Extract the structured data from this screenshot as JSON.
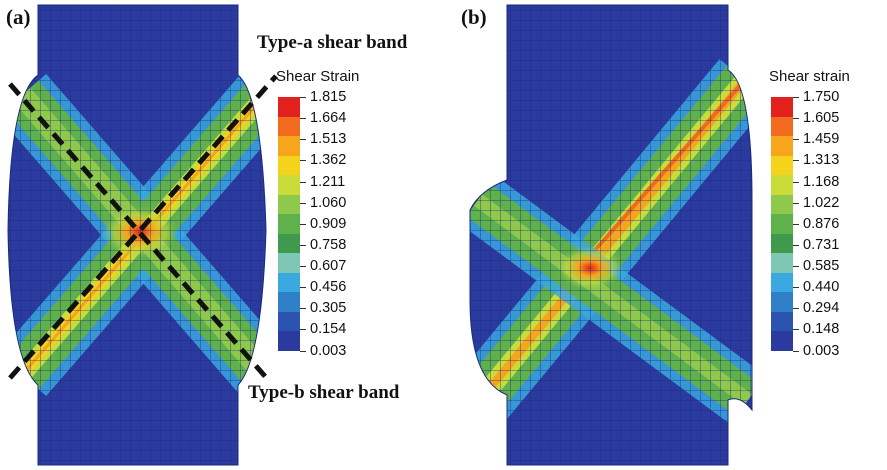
{
  "panels": [
    {
      "label": "(a)",
      "legend_title": "Shear Strain",
      "legend_values": [
        "1.815",
        "1.664",
        "1.513",
        "1.362",
        "1.211",
        "1.060",
        "0.909",
        "0.758",
        "0.607",
        "0.456",
        "0.305",
        "0.154",
        "0.003"
      ],
      "annotations": {
        "type_a": "Type-a shear band",
        "type_b": "Type-b shear band"
      }
    },
    {
      "label": "(b)",
      "legend_title": "Shear strain",
      "legend_values": [
        "1.750",
        "1.605",
        "1.459",
        "1.313",
        "1.168",
        "1.022",
        "0.876",
        "0.731",
        "0.585",
        "0.440",
        "0.294",
        "0.148",
        "0.003"
      ]
    }
  ],
  "colorscale": [
    "#e3211c",
    "#f26a1e",
    "#f7a51d",
    "#f5d21c",
    "#c9dc3a",
    "#8fc94c",
    "#5eb14b",
    "#3f9a4e",
    "#7fc7b5",
    "#3aa9e0",
    "#2f7fc9",
    "#2c53b0",
    "#2a3a9e"
  ]
}
